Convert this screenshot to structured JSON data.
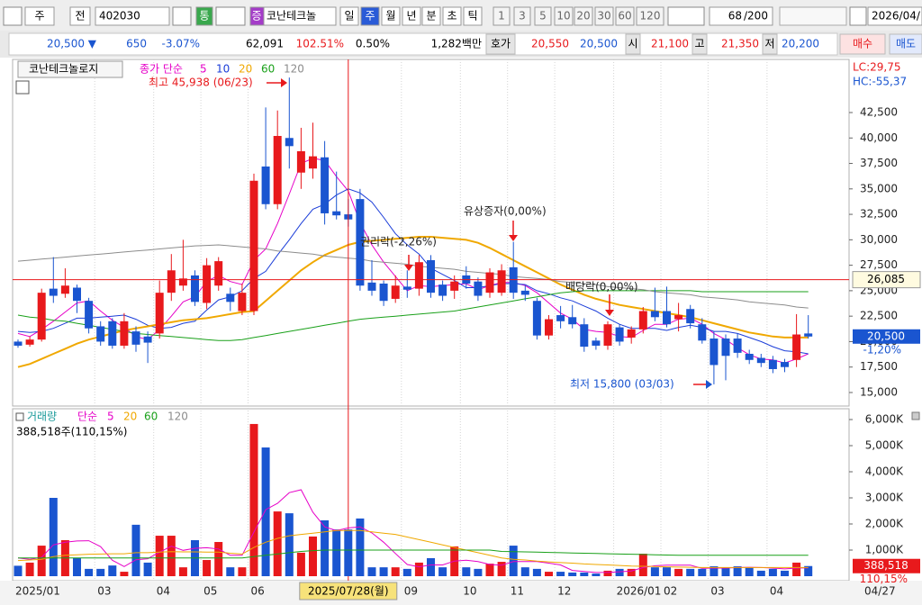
{
  "toolbar": {
    "row1": [
      "주",
      "전",
      "402030",
      "통",
      "증",
      "코난테크놀",
      "일",
      "주",
      "월",
      "년",
      "분",
      "초",
      "틱",
      "1",
      "3",
      "5",
      "10",
      "20",
      "30",
      "60",
      "120",
      "68",
      "/200",
      "2026/04/"
    ],
    "row2": [
      "20,500 ▼",
      "650",
      "-3.07%",
      "62,091",
      "102.51%",
      "0.50%",
      "1,282백만",
      "호가",
      "20,550",
      "20,500",
      "시",
      "21,100",
      "고",
      "21,350",
      "저",
      "20,200",
      "매수",
      "매도"
    ]
  },
  "chart_data": {
    "type": "candlestick",
    "name": "코난테크놀로지",
    "ma_legend_prefix": "종가 단순",
    "categories": [
      "2025/01",
      null,
      null,
      null,
      null,
      null,
      null,
      "03",
      null,
      null,
      null,
      null,
      "04",
      null,
      null,
      null,
      "05",
      null,
      null,
      null,
      "06",
      null,
      null,
      null,
      null,
      null,
      null,
      null,
      null,
      null,
      null,
      null,
      null,
      "09",
      null,
      null,
      null,
      null,
      "10",
      null,
      null,
      null,
      "11",
      null,
      null,
      null,
      "12",
      null,
      null,
      null,
      null,
      "2026/01",
      null,
      null,
      null,
      "02",
      null,
      null,
      null,
      "03",
      null,
      null,
      null,
      null,
      "04",
      null,
      null,
      null
    ],
    "last_date": "04/27",
    "open": [
      20000,
      19700,
      20200,
      25200,
      24700,
      25300,
      24000,
      21500,
      22000,
      19600,
      21000,
      20500,
      20800,
      24800,
      25500,
      26500,
      23800,
      25500,
      24700,
      23000,
      23000,
      37200,
      33500,
      40000,
      36600,
      37000,
      38100,
      32800,
      32500,
      34000,
      25800,
      25700,
      24200,
      25400,
      25200,
      28000,
      25600,
      25000,
      26500,
      25900,
      24800,
      24800,
      27300,
      25000,
      24000,
      20600,
      22600,
      22400,
      21700,
      20100,
      19600,
      21400,
      20400,
      21200,
      23000,
      23000,
      22200,
      23200,
      21700,
      20300,
      20300,
      20300,
      18800,
      18400,
      18200,
      18000,
      18200,
      20800
    ],
    "high": [
      20200,
      20500,
      25200,
      28300,
      27200,
      25600,
      24300,
      22000,
      22300,
      22800,
      21500,
      21000,
      26000,
      28600,
      30000,
      27000,
      28200,
      28300,
      25300,
      25700,
      36500,
      43000,
      42700,
      45938,
      41000,
      41500,
      39700,
      36700,
      34000,
      35000,
      28000,
      26000,
      26500,
      27000,
      28500,
      28500,
      26000,
      26500,
      27400,
      26300,
      27200,
      27600,
      29800,
      25500,
      24300,
      22600,
      23500,
      23600,
      22300,
      20400,
      22000,
      21700,
      21500,
      23400,
      25300,
      25400,
      23800,
      23600,
      22300,
      21000,
      20700,
      20800,
      19200,
      18800,
      18600,
      18300,
      22700,
      22600
    ],
    "low": [
      19400,
      19500,
      20000,
      23800,
      24300,
      22800,
      20800,
      19600,
      19300,
      19300,
      19000,
      17900,
      20300,
      24000,
      25000,
      23500,
      23200,
      25000,
      23000,
      22600,
      22600,
      33000,
      33000,
      37000,
      35000,
      36000,
      31500,
      32000,
      31300,
      25000,
      24500,
      23500,
      23800,
      24300,
      24500,
      24300,
      24000,
      24200,
      25200,
      24000,
      24300,
      24500,
      24200,
      24000,
      20200,
      20200,
      21300,
      21300,
      19000,
      19200,
      19200,
      19600,
      19800,
      20800,
      22000,
      21400,
      21000,
      21300,
      19800,
      15800,
      16200,
      18400,
      17800,
      17500,
      16900,
      17000,
      17500,
      20300
    ],
    "close": [
      19600,
      20200,
      24800,
      24500,
      25500,
      24000,
      21300,
      20000,
      19600,
      22000,
      19700,
      19900,
      24800,
      27000,
      26200,
      23900,
      27500,
      27900,
      23900,
      24800,
      35800,
      33500,
      40200,
      39200,
      38700,
      38200,
      32600,
      32400,
      32000,
      25500,
      25000,
      24000,
      25500,
      25100,
      27800,
      24800,
      24500,
      25900,
      25700,
      24500,
      26800,
      27000,
      24800,
      24600,
      20600,
      22200,
      22000,
      21700,
      19500,
      19600,
      21700,
      20000,
      21200,
      23000,
      22400,
      21700,
      22600,
      21800,
      20100,
      17700,
      18600,
      18900,
      18200,
      17900,
      17300,
      17500,
      20700,
      20500
    ],
    "up_color": "#e8191c",
    "down_color": "#1a55d0",
    "series": [
      {
        "name": "5",
        "color": "#e600c8",
        "values": [
          20800,
          20500,
          21200,
          22000,
          22900,
          23800,
          24000,
          23000,
          22100,
          21400,
          20500,
          20200,
          21200,
          22500,
          23900,
          24400,
          25900,
          26500,
          25900,
          25600,
          28000,
          29100,
          31600,
          34500,
          37500,
          38000,
          37800,
          36200,
          34800,
          31700,
          29500,
          27800,
          26400,
          25000,
          25500,
          25400,
          25500,
          25600,
          25700,
          25100,
          25500,
          25800,
          25800,
          25500,
          24800,
          23800,
          22800,
          22200,
          21200,
          21000,
          20900,
          20500,
          20400,
          21100,
          21700,
          21700,
          22200,
          22300,
          21700,
          20800,
          20200,
          19400,
          18700,
          18300,
          18200,
          17900,
          18300,
          18800
        ]
      },
      {
        "name": "10",
        "color": "#1a3cd8",
        "values": [
          21000,
          20900,
          21000,
          21300,
          21800,
          22300,
          22300,
          22400,
          22500,
          22600,
          22200,
          21600,
          21300,
          21400,
          21800,
          22000,
          23100,
          24100,
          24400,
          25000,
          26200,
          26900,
          28500,
          30000,
          31600,
          33000,
          33500,
          34400,
          35000,
          34600,
          33700,
          32200,
          30600,
          29500,
          28600,
          27200,
          26600,
          26000,
          25300,
          25300,
          25500,
          25700,
          25700,
          25600,
          25000,
          24700,
          24300,
          24000,
          23500,
          23000,
          22300,
          21700,
          21300,
          21300,
          21300,
          21100,
          21400,
          21600,
          21400,
          21000,
          21000,
          20800,
          20400,
          20000,
          19500,
          19100,
          19000,
          18800
        ]
      },
      {
        "name": "20",
        "color": "#f0a800",
        "values": [
          17500,
          17800,
          18300,
          18800,
          19300,
          19800,
          20200,
          20500,
          20800,
          21100,
          21300,
          21500,
          21700,
          21900,
          22100,
          22200,
          22300,
          22500,
          22700,
          22900,
          23000,
          24000,
          25000,
          26000,
          27000,
          27800,
          28500,
          29000,
          29500,
          29800,
          29900,
          30000,
          30100,
          30200,
          30300,
          30300,
          30200,
          30100,
          30000,
          29700,
          29200,
          28600,
          28000,
          27400,
          26800,
          26200,
          25600,
          25100,
          24600,
          24200,
          23900,
          23600,
          23400,
          23200,
          23000,
          22800,
          22600,
          22400,
          22100,
          21800,
          21500,
          21200,
          20900,
          20700,
          20500,
          20400,
          20400,
          20400
        ]
      },
      {
        "name": "60",
        "color": "#19a019",
        "values": [
          22600,
          22400,
          22300,
          22100,
          22000,
          21800,
          21600,
          21400,
          21200,
          21000,
          20800,
          20700,
          20600,
          20500,
          20400,
          20300,
          20200,
          20100,
          20100,
          20200,
          20400,
          20600,
          20800,
          21000,
          21200,
          21400,
          21600,
          21800,
          22000,
          22200,
          22300,
          22400,
          22500,
          22600,
          22700,
          22800,
          22900,
          23000,
          23200,
          23400,
          23600,
          23800,
          24000,
          24200,
          24400,
          24600,
          24800,
          24900,
          25000,
          25000,
          25000,
          25000,
          25000,
          25000,
          25000,
          25000,
          25000,
          25000,
          24900,
          24900,
          24900,
          24900,
          24900,
          24900,
          24900,
          24900,
          24900,
          24900
        ]
      },
      {
        "name": "120",
        "color": "#8c8c8c",
        "values": [
          27900,
          28000,
          28100,
          28200,
          28300,
          28400,
          28500,
          28600,
          28700,
          28800,
          28900,
          29000,
          29100,
          29200,
          29300,
          29400,
          29450,
          29500,
          29400,
          29300,
          29200,
          29100,
          28900,
          28800,
          28700,
          28600,
          28400,
          28300,
          28200,
          28100,
          27900,
          27800,
          27700,
          27600,
          27400,
          27300,
          27200,
          27100,
          26900,
          26800,
          26700,
          26600,
          26400,
          26300,
          26200,
          26100,
          25900,
          25800,
          25700,
          25600,
          25400,
          25300,
          25200,
          25100,
          24900,
          24800,
          24700,
          24600,
          24400,
          24300,
          24200,
          24100,
          23900,
          23800,
          23700,
          23600,
          23400,
          23300
        ]
      }
    ],
    "ylim": [
      13760,
      47540
    ],
    "yticks": [
      {
        "value": 15000,
        "label": "15,000"
      },
      {
        "value": 17500,
        "label": "17,500"
      },
      {
        "value": 20000,
        "label": "20,000"
      },
      {
        "value": 22500,
        "label": "22,500"
      },
      {
        "value": 25000,
        "label": "25,000"
      },
      {
        "value": 27500,
        "label": "27,500"
      },
      {
        "value": 30000,
        "label": "30,000"
      },
      {
        "value": 32500,
        "label": "32,500"
      },
      {
        "value": 35000,
        "label": "35,000"
      },
      {
        "value": 37500,
        "label": "37,500"
      },
      {
        "value": 40000,
        "label": "40,000"
      },
      {
        "value": 42500,
        "label": "42,500"
      }
    ],
    "lc_label": "LC:29,75",
    "hc_label": "HC:-55,37",
    "current_label": "20,500",
    "change_label": "-1,20%",
    "crosshair": {
      "x_label": "2025/07/28(월)",
      "y": {
        "value": 26085,
        "label": "26,085"
      }
    },
    "annotations": {
      "high_label": "최고 45,938 (06/23)",
      "low_label": "최저 15,800 (03/03)",
      "events": [
        "유상증자(0,00%)",
        "권리락(-2,26%)",
        "배당락(0,00%)"
      ]
    },
    "volume": {
      "name": "거래량",
      "ma_legend_prefix": "단순",
      "info": "388,518주(110,15%)",
      "current_label": "388,518",
      "change_label": "110,15%",
      "values": [
        400,
        520,
        1170,
        3000,
        1380,
        690,
        280,
        280,
        410,
        170,
        1970,
        520,
        1550,
        1550,
        340,
        1380,
        620,
        1310,
        340,
        340,
        5830,
        4930,
        2480,
        2410,
        900,
        1520,
        2140,
        1790,
        1790,
        2210,
        340,
        340,
        340,
        280,
        520,
        690,
        340,
        1140,
        340,
        280,
        480,
        550,
        1170,
        340,
        280,
        170,
        170,
        140,
        140,
        100,
        210,
        280,
        280,
        860,
        340,
        340,
        280,
        280,
        280,
        380,
        340,
        380,
        340,
        210,
        280,
        210,
        520,
        388.518
      ],
      "ylim": [
        0,
        6345
      ],
      "yticks": [
        {
          "value": 1000,
          "label": "1,000K"
        },
        {
          "value": 2000,
          "label": "2,000K"
        },
        {
          "value": 3000,
          "label": "3,000K"
        },
        {
          "value": 4000,
          "label": "4,000K"
        },
        {
          "value": 5000,
          "label": "5,000K"
        },
        {
          "value": 6000,
          "label": "6,000K"
        }
      ],
      "series": [
        {
          "name": "5",
          "color": "#e600c8",
          "values": [
            700,
            650,
            720,
            1200,
            1300,
            1350,
            1360,
            1130,
            610,
            370,
            630,
            670,
            920,
            1150,
            990,
            1070,
            1090,
            1040,
            800,
            800,
            1690,
            2550,
            2790,
            3200,
            3310,
            2450,
            1890,
            1750,
            1850,
            1890,
            1660,
            1300,
            870,
            450,
            360,
            430,
            430,
            580,
            610,
            560,
            450,
            420,
            560,
            560,
            560,
            500,
            430,
            220,
            180,
            140,
            150,
            170,
            200,
            330,
            400,
            420,
            420,
            420,
            300,
            310,
            310,
            330,
            340,
            330,
            310,
            280,
            310,
            320
          ]
        },
        {
          "name": "20",
          "color": "#f0a800",
          "values": [
            600,
            620,
            650,
            750,
            800,
            820,
            840,
            850,
            860,
            860,
            900,
            900,
            920,
            940,
            930,
            930,
            920,
            920,
            880,
            850,
            1100,
            1300,
            1450,
            1550,
            1600,
            1650,
            1700,
            1750,
            1750,
            1750,
            1700,
            1650,
            1600,
            1500,
            1400,
            1300,
            1200,
            1100,
            1000,
            900,
            800,
            700,
            650,
            620,
            580,
            550,
            520,
            500,
            470,
            450,
            430,
            410,
            390,
            380,
            370,
            360,
            350,
            340,
            330,
            330,
            330,
            330,
            330,
            330,
            330,
            330,
            330,
            330
          ]
        },
        {
          "name": "60",
          "color": "#19a019",
          "values": [
            700,
            700,
            700,
            700,
            700,
            700,
            700,
            700,
            700,
            700,
            700,
            700,
            700,
            700,
            700,
            700,
            700,
            700,
            700,
            700,
            750,
            800,
            850,
            900,
            950,
            980,
            1000,
            1000,
            1000,
            1000,
            1000,
            1000,
            1000,
            1000,
            1000,
            1000,
            1000,
            1000,
            1000,
            1000,
            1000,
            950,
            940,
            930,
            920,
            910,
            900,
            890,
            880,
            870,
            860,
            850,
            840,
            830,
            820,
            810,
            800,
            800,
            800,
            800,
            800,
            800,
            800,
            800,
            800,
            800,
            800,
            800
          ]
        },
        {
          "name": "120",
          "color": "#8c8c8c"
        }
      ]
    }
  }
}
